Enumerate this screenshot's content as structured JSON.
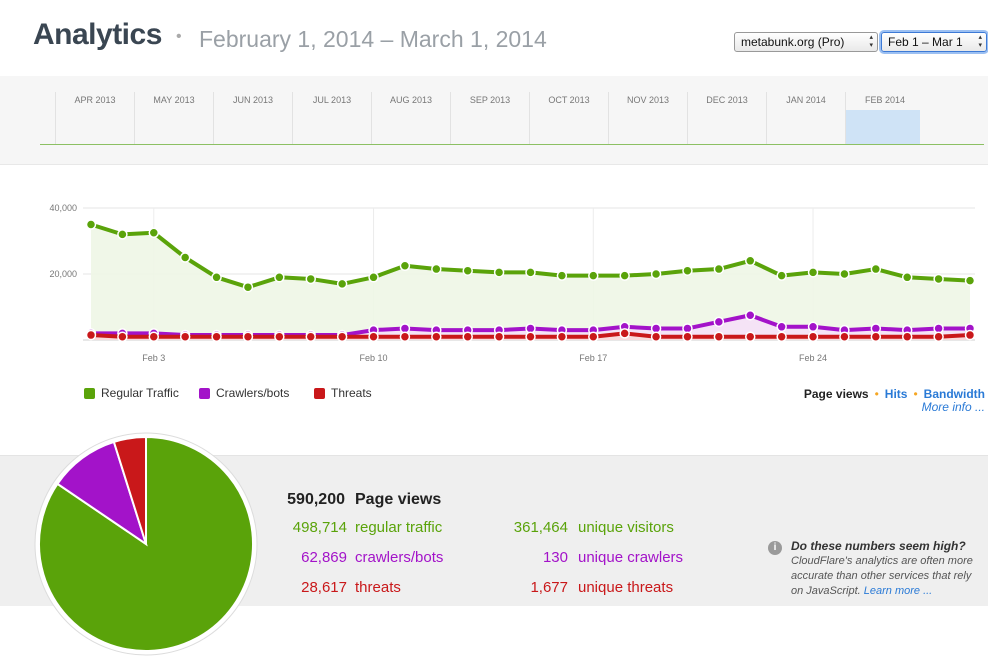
{
  "header": {
    "title": "Analytics",
    "separator": "•",
    "date_range": "February 1, 2014 – March 1, 2014",
    "site_select": "metabunk.org (Pro)",
    "range_select": "Feb 1 – Mar 1"
  },
  "timeline": {
    "months": [
      "APR 2013",
      "MAY 2013",
      "JUN 2013",
      "JUL 2013",
      "AUG 2013",
      "SEP 2013",
      "OCT 2013",
      "NOV 2013",
      "DEC 2013",
      "JAN 2014",
      "FEB 2014"
    ],
    "selected": "FEB 2014"
  },
  "chart_data": {
    "type": "line",
    "x": [
      "Feb 1",
      "Feb 2",
      "Feb 3",
      "Feb 4",
      "Feb 5",
      "Feb 6",
      "Feb 7",
      "Feb 8",
      "Feb 9",
      "Feb 10",
      "Feb 11",
      "Feb 12",
      "Feb 13",
      "Feb 14",
      "Feb 15",
      "Feb 16",
      "Feb 17",
      "Feb 18",
      "Feb 19",
      "Feb 20",
      "Feb 21",
      "Feb 22",
      "Feb 23",
      "Feb 24",
      "Feb 25",
      "Feb 26",
      "Feb 27",
      "Feb 28",
      "Mar 1"
    ],
    "x_tick_labels": [
      "Feb 3",
      "Feb 10",
      "Feb 17",
      "Feb 24"
    ],
    "y_tick_labels": [
      "40,000",
      "20,000"
    ],
    "ylim": [
      0,
      40000
    ],
    "series": [
      {
        "name": "Regular Traffic",
        "color": "#5aa30a",
        "values": [
          35000,
          32000,
          32500,
          25000,
          19000,
          16000,
          19000,
          18500,
          17000,
          19000,
          22500,
          21500,
          21000,
          20500,
          20500,
          19500,
          19500,
          19500,
          20000,
          21000,
          21500,
          24000,
          19500,
          20500,
          20000,
          21500,
          19000,
          18500,
          18000
        ]
      },
      {
        "name": "Crawlers/bots",
        "color": "#a313c9",
        "values": [
          2000,
          2000,
          2000,
          1500,
          1500,
          1500,
          1500,
          1500,
          1500,
          3000,
          3500,
          3000,
          3000,
          3000,
          3500,
          3000,
          3000,
          4000,
          3500,
          3500,
          5500,
          7500,
          4000,
          4000,
          3000,
          3500,
          3000,
          3500,
          3500
        ]
      },
      {
        "name": "Threats",
        "color": "#c9181a",
        "values": [
          1500,
          1000,
          1000,
          1000,
          1000,
          1000,
          1000,
          1000,
          1000,
          1000,
          1000,
          1000,
          1000,
          1000,
          1000,
          1000,
          1000,
          2000,
          1000,
          1000,
          1000,
          1000,
          1000,
          1000,
          1000,
          1000,
          1000,
          1000,
          1500
        ]
      }
    ]
  },
  "legend": [
    {
      "label": "Regular Traffic",
      "color": "#5aa30a"
    },
    {
      "label": "Crawlers/bots",
      "color": "#a313c9"
    },
    {
      "label": "Threats",
      "color": "#c9181a"
    }
  ],
  "metric_tabs": {
    "page_views": "Page views",
    "hits": "Hits",
    "bandwidth": "Bandwidth",
    "more_info": "More info ..."
  },
  "stats": {
    "total_value": "590,200",
    "total_label": "Page views",
    "regular_value": "498,714",
    "regular_label": "regular traffic",
    "crawlers_value": "62,869",
    "crawlers_label": "crawlers/bots",
    "threats_value": "28,617",
    "threats_label": "threats",
    "visitors_value": "361,464",
    "visitors_label": "unique visitors",
    "ucrawlers_value": "130",
    "ucrawlers_label": "unique crawlers",
    "uthreats_value": "1,677",
    "uthreats_label": "unique threats",
    "pie": [
      498714,
      62869,
      28617
    ]
  },
  "help": {
    "icon": "i",
    "question": "Do these numbers seem high?",
    "text": "CloudFlare's analytics are often more accurate than other services that rely on JavaScript.",
    "link": "Learn more ..."
  }
}
